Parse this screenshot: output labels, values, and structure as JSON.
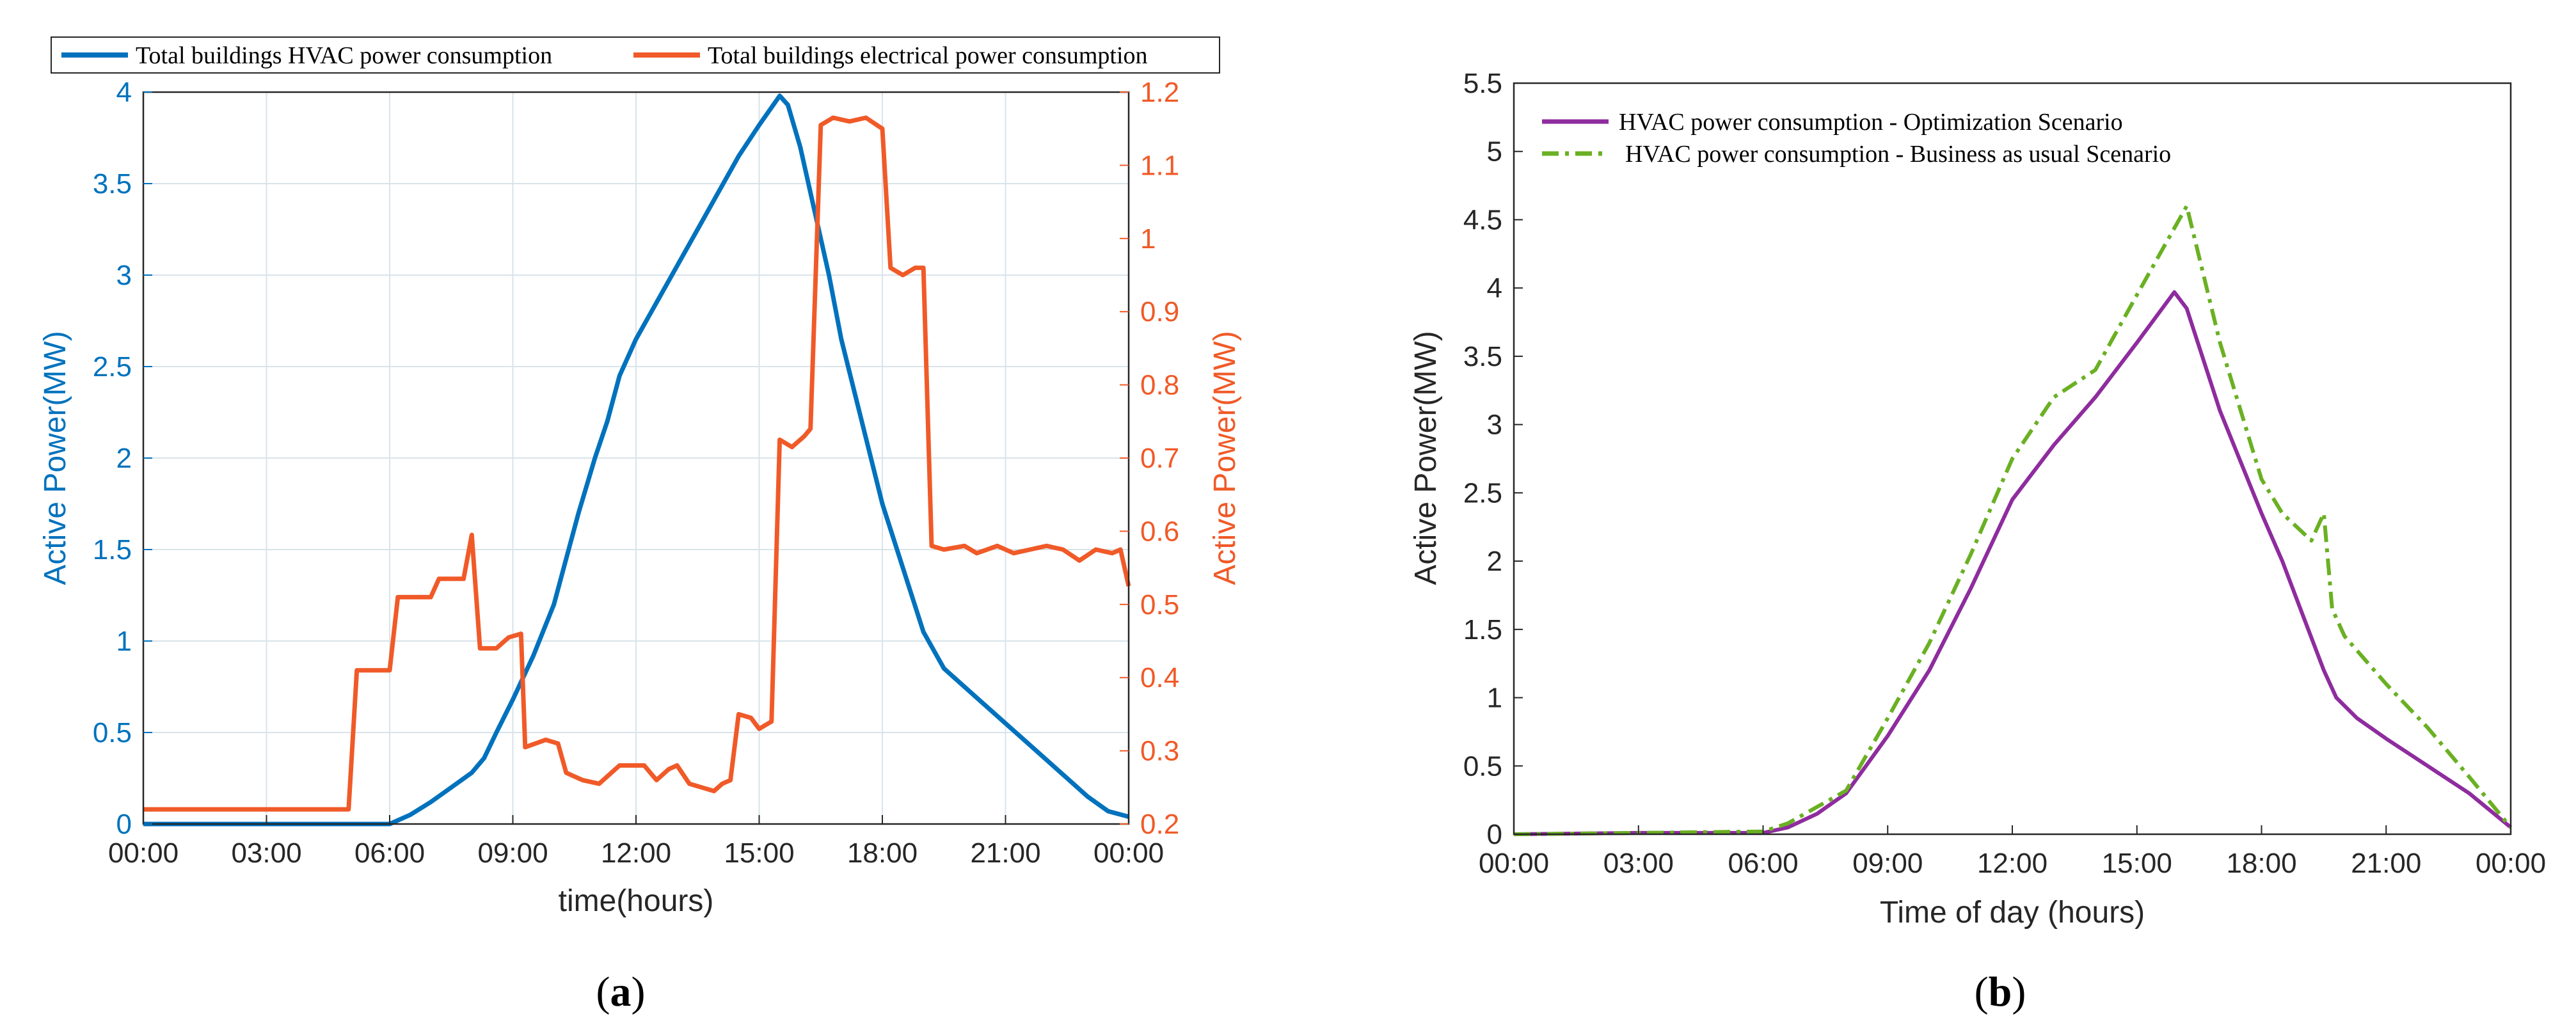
{
  "chart_data": [
    {
      "type": "line",
      "panel_caption_letter": "a",
      "xlabel": "time(hours)",
      "ylabel_left": "Active Power(MW)",
      "ylabel_right": "Active Power(MW)",
      "xlim": [
        0,
        24
      ],
      "ylim_left": [
        0,
        4
      ],
      "ylim_right": [
        0.2,
        1.2
      ],
      "grid": true,
      "legend_position": "top, outside",
      "x_tick_labels": [
        "00:00",
        "03:00",
        "06:00",
        "09:00",
        "12:00",
        "15:00",
        "18:00",
        "21:00",
        "00:00"
      ],
      "y_left_tick_labels": [
        "0",
        "0.5",
        "1",
        "1.5",
        "2",
        "2.5",
        "3",
        "3.5",
        "4"
      ],
      "y_right_tick_labels": [
        "0.2",
        "0.3",
        "0.4",
        "0.5",
        "0.6",
        "0.7",
        "0.8",
        "0.9",
        "1",
        "1.1",
        "1.2"
      ],
      "series": [
        {
          "name": "Total buildings HVAC power consumption",
          "axis": "left",
          "color": "#0072BD",
          "dash": "solid",
          "points": [
            [
              0,
              0
            ],
            [
              6,
              0
            ],
            [
              6.5,
              0.05
            ],
            [
              7,
              0.12
            ],
            [
              7.5,
              0.2
            ],
            [
              8,
              0.28
            ],
            [
              8.3,
              0.36
            ],
            [
              8.6,
              0.5
            ],
            [
              9,
              0.68
            ],
            [
              9.5,
              0.92
            ],
            [
              10,
              1.2
            ],
            [
              10.3,
              1.45
            ],
            [
              10.6,
              1.7
            ],
            [
              11,
              2.0
            ],
            [
              11.3,
              2.2
            ],
            [
              11.6,
              2.45
            ],
            [
              12,
              2.65
            ],
            [
              12.5,
              2.85
            ],
            [
              13,
              3.05
            ],
            [
              13.5,
              3.25
            ],
            [
              14,
              3.45
            ],
            [
              14.5,
              3.65
            ],
            [
              15,
              3.82
            ],
            [
              15.5,
              3.98
            ],
            [
              15.7,
              3.93
            ],
            [
              16,
              3.7
            ],
            [
              16.3,
              3.4
            ],
            [
              16.7,
              3.0
            ],
            [
              17,
              2.65
            ],
            [
              17.5,
              2.2
            ],
            [
              18,
              1.75
            ],
            [
              18.5,
              1.4
            ],
            [
              19,
              1.05
            ],
            [
              19.5,
              0.85
            ],
            [
              20,
              0.75
            ],
            [
              20.5,
              0.65
            ],
            [
              21,
              0.55
            ],
            [
              21.5,
              0.45
            ],
            [
              22,
              0.35
            ],
            [
              22.5,
              0.25
            ],
            [
              23,
              0.15
            ],
            [
              23.5,
              0.07
            ],
            [
              24,
              0.04
            ]
          ]
        },
        {
          "name": "Total buildings electrical power consumption",
          "axis": "right",
          "color": "#F05A28",
          "dash": "solid",
          "points": [
            [
              0,
              0.22
            ],
            [
              5.0,
              0.22
            ],
            [
              5.2,
              0.41
            ],
            [
              6.0,
              0.41
            ],
            [
              6.2,
              0.51
            ],
            [
              7.0,
              0.51
            ],
            [
              7.2,
              0.535
            ],
            [
              7.8,
              0.535
            ],
            [
              8.0,
              0.595
            ],
            [
              8.2,
              0.44
            ],
            [
              8.6,
              0.44
            ],
            [
              8.9,
              0.455
            ],
            [
              9.2,
              0.46
            ],
            [
              9.3,
              0.305
            ],
            [
              9.8,
              0.315
            ],
            [
              10.1,
              0.31
            ],
            [
              10.3,
              0.27
            ],
            [
              10.7,
              0.26
            ],
            [
              11.1,
              0.255
            ],
            [
              11.3,
              0.265
            ],
            [
              11.6,
              0.28
            ],
            [
              12.2,
              0.28
            ],
            [
              12.5,
              0.26
            ],
            [
              12.8,
              0.275
            ],
            [
              13.0,
              0.28
            ],
            [
              13.3,
              0.255
            ],
            [
              13.6,
              0.25
            ],
            [
              13.9,
              0.245
            ],
            [
              14.1,
              0.255
            ],
            [
              14.3,
              0.26
            ],
            [
              14.5,
              0.35
            ],
            [
              14.8,
              0.345
            ],
            [
              15.0,
              0.33
            ],
            [
              15.3,
              0.34
            ],
            [
              15.5,
              0.725
            ],
            [
              15.8,
              0.715
            ],
            [
              16.1,
              0.73
            ],
            [
              16.25,
              0.74
            ],
            [
              16.5,
              1.155
            ],
            [
              16.8,
              1.165
            ],
            [
              17.2,
              1.16
            ],
            [
              17.6,
              1.165
            ],
            [
              18.0,
              1.15
            ],
            [
              18.2,
              0.96
            ],
            [
              18.5,
              0.95
            ],
            [
              18.8,
              0.96
            ],
            [
              19.0,
              0.96
            ],
            [
              19.2,
              0.58
            ],
            [
              19.5,
              0.575
            ],
            [
              20.0,
              0.58
            ],
            [
              20.3,
              0.57
            ],
            [
              20.8,
              0.58
            ],
            [
              21.2,
              0.57
            ],
            [
              21.6,
              0.575
            ],
            [
              22.0,
              0.58
            ],
            [
              22.4,
              0.575
            ],
            [
              22.8,
              0.56
            ],
            [
              23.2,
              0.575
            ],
            [
              23.6,
              0.57
            ],
            [
              23.8,
              0.575
            ],
            [
              24.0,
              0.525
            ]
          ]
        }
      ]
    },
    {
      "type": "line",
      "panel_caption_letter": "b",
      "xlabel": "Time of day (hours)",
      "ylabel": "Active Power(MW)",
      "xlim": [
        0,
        24
      ],
      "ylim": [
        0,
        5.5
      ],
      "grid": false,
      "legend_position": "top-left",
      "x_tick_labels": [
        "00:00",
        "03:00",
        "06:00",
        "09:00",
        "12:00",
        "15:00",
        "18:00",
        "21:00",
        "00:00"
      ],
      "y_tick_labels": [
        "0",
        "0.5",
        "1",
        "1.5",
        "2",
        "2.5",
        "3",
        "3.5",
        "4",
        "4.5",
        "5",
        "5.5"
      ],
      "series": [
        {
          "name": "HVAC power consumption - Optimization Scenario",
          "color": "#8E2C9E",
          "dash": "solid",
          "points": [
            [
              0,
              0
            ],
            [
              3,
              0.01
            ],
            [
              6,
              0.01
            ],
            [
              6.6,
              0.05
            ],
            [
              7.3,
              0.15
            ],
            [
              8,
              0.3
            ],
            [
              9,
              0.72
            ],
            [
              10,
              1.2
            ],
            [
              11,
              1.8
            ],
            [
              12,
              2.45
            ],
            [
              13,
              2.85
            ],
            [
              14,
              3.2
            ],
            [
              15,
              3.6
            ],
            [
              15.9,
              3.97
            ],
            [
              16.2,
              3.85
            ],
            [
              17,
              3.1
            ],
            [
              18,
              2.35
            ],
            [
              18.5,
              2.0
            ],
            [
              19,
              1.6
            ],
            [
              19.5,
              1.2
            ],
            [
              19.8,
              1.0
            ],
            [
              20.3,
              0.85
            ],
            [
              21,
              0.7
            ],
            [
              22,
              0.5
            ],
            [
              23,
              0.3
            ],
            [
              24,
              0.05
            ]
          ]
        },
        {
          "name": "HVAC power consumption - Business as usual Scenario",
          "color": "#6AB023",
          "dash": "dashdot",
          "points": [
            [
              0,
              0
            ],
            [
              3,
              0.01
            ],
            [
              6,
              0.02
            ],
            [
              6.6,
              0.08
            ],
            [
              7.3,
              0.2
            ],
            [
              8,
              0.32
            ],
            [
              9,
              0.85
            ],
            [
              10,
              1.4
            ],
            [
              11,
              2.05
            ],
            [
              12,
              2.75
            ],
            [
              13,
              3.2
            ],
            [
              14,
              3.4
            ],
            [
              15,
              3.95
            ],
            [
              16.2,
              4.6
            ],
            [
              17,
              3.6
            ],
            [
              18,
              2.6
            ],
            [
              18.5,
              2.35
            ],
            [
              19.2,
              2.15
            ],
            [
              19.5,
              2.35
            ],
            [
              19.7,
              1.65
            ],
            [
              20,
              1.45
            ],
            [
              21,
              1.1
            ],
            [
              22,
              0.78
            ],
            [
              23,
              0.42
            ],
            [
              24,
              0.05
            ]
          ]
        }
      ]
    }
  ]
}
